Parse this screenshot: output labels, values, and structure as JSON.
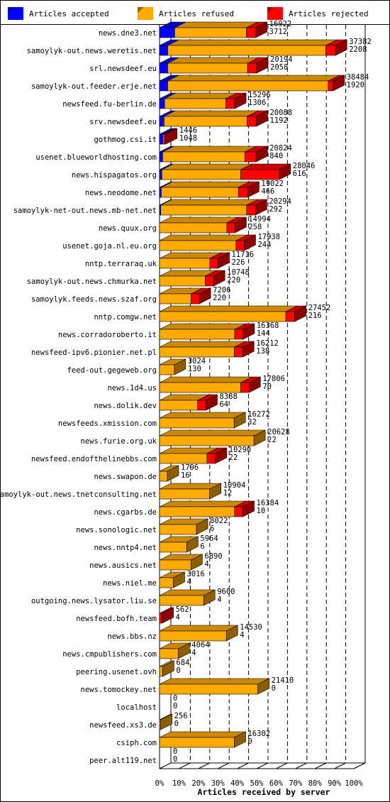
{
  "chart_data": {
    "type": "bar",
    "orientation": "horizontal",
    "stacked": true,
    "xlabel": "Articles received by server",
    "xlim": [
      0,
      100
    ],
    "x_unit": "%",
    "ticks": [
      "0%",
      "10%",
      "20%",
      "30%",
      "40%",
      "50%",
      "60%",
      "70%",
      "80%",
      "90%",
      "100%"
    ],
    "grid": "vertical dashed",
    "legend_position": "top",
    "series": [
      {
        "name": "Articles accepted",
        "color": "#0000ff"
      },
      {
        "name": "Articles refused",
        "color": "#ffaa00"
      },
      {
        "name": "Articles rejected",
        "color": "#ff0000"
      }
    ],
    "rows": [
      {
        "server": "news.dne3.net",
        "total": "16922",
        "rejected": "3712",
        "pct": [
          7.8,
          36.9,
          4.8
        ]
      },
      {
        "server": "samoylyk-out.news.weretis.net",
        "total": "37382",
        "rejected": "2208",
        "pct": [
          4.2,
          81.4,
          5.0
        ]
      },
      {
        "server": "srl.newsdeef.eu",
        "total": "20194",
        "rejected": "2058",
        "pct": [
          4.2,
          41.1,
          4.7
        ]
      },
      {
        "server": "samoylyk-out.feeder.erje.net",
        "total": "38484",
        "rejected": "1920",
        "pct": [
          4.2,
          82.6,
          2.5
        ]
      },
      {
        "server": "newsfeed.fu-berlin.de",
        "total": "15296",
        "rejected": "1306",
        "pct": [
          2.6,
          31.5,
          4.6
        ]
      },
      {
        "server": "srv.newsdeef.eu",
        "total": "20088",
        "rejected": "1192",
        "pct": [
          2.3,
          42.7,
          4.8
        ]
      },
      {
        "server": "gothmog.csi.it",
        "total": "1446",
        "rejected": "1048",
        "pct": [
          1.8,
          0.6,
          0.8
        ]
      },
      {
        "server": "usenet.blueworldhosting.com",
        "total": "20824",
        "rejected": "840",
        "pct": [
          1.6,
          42.3,
          5.8
        ]
      },
      {
        "server": "news.hispagatos.org",
        "total": "28046",
        "rejected": "616",
        "pct": [
          1.2,
          40.6,
          19.8
        ]
      },
      {
        "server": "news.neodome.net",
        "total": "19022",
        "rejected": "466",
        "pct": [
          0.9,
          39.7,
          4.8
        ]
      },
      {
        "server": "samoylyk-net-out.news.mb-net.net",
        "total": "20294",
        "rejected": "292",
        "pct": [
          0.6,
          44.2,
          4.6
        ]
      },
      {
        "server": "news.quux.org",
        "total": "14994",
        "rejected": "258",
        "pct": [
          0,
          34.6,
          4.2
        ]
      },
      {
        "server": "usenet.goja.nl.eu.org",
        "total": "17938",
        "rejected": "244",
        "pct": [
          0,
          39.4,
          4.2
        ]
      },
      {
        "server": "nntp.terraraq.uk",
        "total": "11716",
        "rejected": "226",
        "pct": [
          0,
          25.9,
          4.2
        ]
      },
      {
        "server": "samoylyk-out.news.chmurka.net",
        "total": "10748",
        "rejected": "220",
        "pct": [
          0,
          23.5,
          4.3
        ]
      },
      {
        "server": "samoylyk.feeds.news.szaf.org",
        "total": "7206",
        "rejected": "220",
        "pct": [
          0,
          16.2,
          4.3
        ]
      },
      {
        "server": "nntp.comgw.net",
        "total": "27452",
        "rejected": "216",
        "pct": [
          0,
          65.0,
          4.6
        ]
      },
      {
        "server": "news.corradoroberto.it",
        "total": "16368",
        "rejected": "144",
        "pct": [
          0,
          38.7,
          4.3
        ]
      },
      {
        "server": "newsfeed-ipv6.pionier.net.pl",
        "total": "16212",
        "rejected": "138",
        "pct": [
          0,
          38.5,
          4.3
        ]
      },
      {
        "server": "feed-out.gegeweb.org",
        "total": "3024",
        "rejected": "130",
        "pct": [
          0,
          7.6,
          0
        ]
      },
      {
        "server": "news.1d4.us",
        "total": "17806",
        "rejected": "70",
        "pct": [
          0,
          41.8,
          4.3
        ]
      },
      {
        "server": "news.dolik.dev",
        "total": "8388",
        "rejected": "64",
        "pct": [
          0,
          19.6,
          4.3
        ]
      },
      {
        "server": "newsfeeds.xmission.com",
        "total": "16272",
        "rejected": "32",
        "pct": [
          0,
          38.4,
          0
        ]
      },
      {
        "server": "news.furie.org.uk",
        "total": "20628",
        "rejected": "22",
        "pct": [
          0,
          48.6,
          0
        ]
      },
      {
        "server": "newsfeed.endofthelinebbs.com",
        "total": "10290",
        "rejected": "22",
        "pct": [
          0,
          24.4,
          4.3
        ]
      },
      {
        "server": "news.swapon.de",
        "total": "1796",
        "rejected": "16",
        "pct": [
          0,
          4.0,
          0
        ]
      },
      {
        "server": "samoylyk-out.news.tnetconsulting.net",
        "total": "10904",
        "rejected": "12",
        "pct": [
          0,
          25.8,
          0
        ]
      },
      {
        "server": "news.cgarbs.de",
        "total": "16384",
        "rejected": "10",
        "pct": [
          0,
          38.6,
          4.3
        ]
      },
      {
        "server": "news.sonologic.net",
        "total": "8022",
        "rejected": "6",
        "pct": [
          0,
          19.0,
          0
        ]
      },
      {
        "server": "news.nntp4.net",
        "total": "5964",
        "rejected": "6",
        "pct": [
          0,
          14.0,
          0
        ]
      },
      {
        "server": "news.ausics.net",
        "total": "6890",
        "rejected": "4",
        "pct": [
          0,
          16.2,
          0
        ]
      },
      {
        "server": "news.niel.me",
        "total": "3016",
        "rejected": "4",
        "pct": [
          0,
          7.1,
          0
        ]
      },
      {
        "server": "outgoing.news.lysator.liu.se",
        "total": "9600",
        "rejected": "4",
        "pct": [
          0,
          22.7,
          0
        ]
      },
      {
        "server": "newsfeed.bofh.team",
        "total": "562",
        "rejected": "4",
        "pct": [
          0,
          0,
          1.3
        ]
      },
      {
        "server": "news.bbs.nz",
        "total": "14530",
        "rejected": "4",
        "pct": [
          0,
          34.4,
          0
        ]
      },
      {
        "server": "news.cmpublishers.com",
        "total": "4064",
        "rejected": "4",
        "pct": [
          0,
          9.6,
          0
        ]
      },
      {
        "server": "peering.usenet.ovh",
        "total": "684",
        "rejected": "0",
        "pct": [
          0,
          1.6,
          0
        ]
      },
      {
        "server": "news.tomockey.net",
        "total": "21410",
        "rejected": "0",
        "pct": [
          0,
          50.6,
          0
        ]
      },
      {
        "server": "localhost",
        "total": "0",
        "rejected": "0",
        "pct": [
          0,
          0,
          0
        ]
      },
      {
        "server": "newsfeed.xs3.de",
        "total": "256",
        "rejected": "0",
        "pct": [
          0,
          0.6,
          0
        ]
      },
      {
        "server": "csiph.com",
        "total": "16302",
        "rejected": "0",
        "pct": [
          0,
          38.5,
          0
        ]
      },
      {
        "server": "peer.alt119.net",
        "total": "0",
        "rejected": "0",
        "pct": [
          0,
          0,
          0
        ]
      }
    ]
  }
}
